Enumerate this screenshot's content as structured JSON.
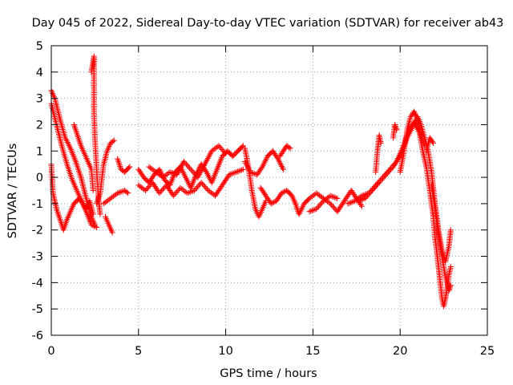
{
  "chart_data": {
    "type": "scatter",
    "title": "Day 045 of 2022, Sidereal Day-to-day VTEC variation (SDTVAR) for receiver ab43",
    "xlabel": "GPS time / hours",
    "ylabel": "SDTVAR / TECUs",
    "xlim": [
      0,
      25
    ],
    "ylim": [
      -6,
      5
    ],
    "xticks": [
      0,
      5,
      10,
      15,
      20,
      25
    ],
    "yticks": [
      -6,
      -5,
      -4,
      -3,
      -2,
      -1,
      0,
      1,
      2,
      3,
      4,
      5
    ],
    "grid": true,
    "legend": "none",
    "marker": "+",
    "series": [
      {
        "name": "SDTVAR",
        "color": "#ff0000",
        "tracks": [
          [
            [
              0.0,
              3.3
            ],
            [
              0.2,
              3.0
            ],
            [
              0.5,
              2.2
            ],
            [
              0.8,
              1.5
            ],
            [
              1.1,
              1.1
            ],
            [
              1.4,
              0.6
            ],
            [
              1.7,
              0.0
            ],
            [
              2.0,
              -0.8
            ],
            [
              2.3,
              -1.5
            ],
            [
              2.5,
              -1.8
            ]
          ],
          [
            [
              0.0,
              2.8
            ],
            [
              0.3,
              2.0
            ],
            [
              0.6,
              1.2
            ],
            [
              0.9,
              0.5
            ],
            [
              1.2,
              -0.1
            ],
            [
              1.6,
              -0.7
            ],
            [
              2.0,
              -1.3
            ],
            [
              2.3,
              -1.8
            ],
            [
              2.6,
              -1.9
            ]
          ],
          [
            [
              0.0,
              0.5
            ],
            [
              0.1,
              -0.6
            ],
            [
              0.3,
              -1.2
            ],
            [
              0.5,
              -1.6
            ],
            [
              0.7,
              -2.0
            ],
            [
              0.9,
              -1.6
            ],
            [
              1.1,
              -1.3
            ],
            [
              1.3,
              -1.0
            ],
            [
              1.6,
              -0.8
            ],
            [
              1.8,
              -1.0
            ],
            [
              2.0,
              -1.2
            ],
            [
              2.2,
              -0.9
            ],
            [
              2.4,
              -1.4
            ]
          ],
          [
            [
              1.3,
              2.0
            ],
            [
              1.5,
              1.6
            ],
            [
              1.7,
              1.2
            ],
            [
              1.9,
              0.9
            ],
            [
              2.1,
              0.6
            ],
            [
              2.3,
              0.3
            ],
            [
              2.4,
              -0.5
            ]
          ],
          [
            [
              2.3,
              4.0
            ],
            [
              2.45,
              4.6
            ],
            [
              2.45,
              2.5
            ],
            [
              2.5,
              1.5
            ],
            [
              2.6,
              0.3
            ],
            [
              2.7,
              -0.8
            ],
            [
              2.8,
              -1.4
            ]
          ],
          [
            [
              2.6,
              -1.0
            ],
            [
              2.8,
              -0.6
            ],
            [
              3.0,
              0.5
            ],
            [
              3.2,
              1.0
            ],
            [
              3.4,
              1.3
            ],
            [
              3.6,
              1.4
            ]
          ],
          [
            [
              3.1,
              -1.5
            ],
            [
              3.3,
              -1.8
            ],
            [
              3.5,
              -2.1
            ]
          ],
          [
            [
              3.0,
              -1.0
            ],
            [
              3.4,
              -0.8
            ],
            [
              3.8,
              -0.6
            ],
            [
              4.2,
              -0.5
            ],
            [
              4.4,
              -0.6
            ]
          ],
          [
            [
              3.8,
              0.7
            ],
            [
              4.0,
              0.3
            ],
            [
              4.2,
              0.2
            ],
            [
              4.5,
              0.4
            ]
          ],
          [
            [
              5.0,
              0.3
            ],
            [
              5.3,
              0.0
            ],
            [
              5.6,
              -0.2
            ],
            [
              5.9,
              0.1
            ],
            [
              6.2,
              0.3
            ],
            [
              6.5,
              -0.1
            ],
            [
              6.8,
              -0.3
            ],
            [
              7.1,
              0.2
            ],
            [
              7.4,
              0.4
            ],
            [
              7.7,
              0.0
            ],
            [
              8.0,
              -0.4
            ],
            [
              8.3,
              0.1
            ],
            [
              8.6,
              0.5
            ],
            [
              8.9,
              0.2
            ],
            [
              9.2,
              -0.2
            ],
            [
              9.5,
              0.3
            ],
            [
              9.8,
              0.8
            ],
            [
              10.1,
              1.0
            ],
            [
              10.4,
              0.8
            ],
            [
              10.7,
              1.0
            ],
            [
              11.0,
              1.2
            ]
          ],
          [
            [
              5.0,
              -0.3
            ],
            [
              5.4,
              -0.5
            ],
            [
              5.8,
              -0.2
            ],
            [
              6.2,
              -0.6
            ],
            [
              6.6,
              -0.3
            ],
            [
              7.0,
              -0.7
            ],
            [
              7.4,
              -0.4
            ],
            [
              7.8,
              -0.6
            ],
            [
              8.2,
              -0.5
            ],
            [
              8.6,
              -0.2
            ],
            [
              9.0,
              -0.5
            ],
            [
              9.4,
              -0.7
            ],
            [
              9.8,
              -0.3
            ],
            [
              10.2,
              0.1
            ],
            [
              10.6,
              0.2
            ],
            [
              11.0,
              0.3
            ]
          ],
          [
            [
              5.6,
              0.4
            ],
            [
              6.0,
              0.2
            ],
            [
              6.4,
              0.0
            ],
            [
              6.8,
              0.2
            ],
            [
              7.2,
              0.1
            ],
            [
              7.6,
              0.6
            ],
            [
              8.0,
              0.3
            ],
            [
              8.4,
              0.0
            ],
            [
              8.8,
              0.5
            ],
            [
              9.2,
              1.0
            ],
            [
              9.6,
              1.2
            ],
            [
              10.0,
              0.9
            ]
          ],
          [
            [
              11.1,
              1.1
            ],
            [
              11.3,
              0.4
            ],
            [
              11.5,
              -0.5
            ],
            [
              11.7,
              -1.2
            ],
            [
              11.9,
              -1.5
            ],
            [
              12.1,
              -1.2
            ],
            [
              12.3,
              -0.9
            ]
          ],
          [
            [
              11.1,
              0.6
            ],
            [
              11.4,
              0.2
            ],
            [
              11.8,
              0.1
            ],
            [
              12.1,
              0.4
            ],
            [
              12.4,
              0.8
            ],
            [
              12.7,
              1.0
            ],
            [
              13.0,
              0.7
            ],
            [
              13.3,
              0.3
            ]
          ],
          [
            [
              12.0,
              -0.4
            ],
            [
              12.3,
              -0.7
            ],
            [
              12.6,
              -1.0
            ],
            [
              12.9,
              -0.9
            ],
            [
              13.2,
              -0.6
            ],
            [
              13.5,
              -0.5
            ],
            [
              13.8,
              -0.7
            ],
            [
              14.0,
              -1.0
            ],
            [
              14.2,
              -1.4
            ],
            [
              14.5,
              -1.0
            ],
            [
              14.8,
              -0.8
            ],
            [
              15.2,
              -0.6
            ],
            [
              15.6,
              -0.8
            ],
            [
              16.0,
              -1.0
            ],
            [
              16.4,
              -1.3
            ],
            [
              16.8,
              -0.9
            ],
            [
              17.2,
              -0.5
            ],
            [
              17.5,
              -0.8
            ],
            [
              17.8,
              -1.1
            ]
          ],
          [
            [
              13.1,
              0.8
            ],
            [
              13.3,
              1.0
            ],
            [
              13.5,
              1.2
            ],
            [
              13.7,
              1.1
            ]
          ],
          [
            [
              14.8,
              -1.3
            ],
            [
              15.2,
              -1.2
            ],
            [
              15.6,
              -0.9
            ],
            [
              16.0,
              -0.7
            ],
            [
              16.4,
              -0.8
            ]
          ],
          [
            [
              17.0,
              -1.0
            ],
            [
              17.4,
              -0.9
            ],
            [
              17.8,
              -0.7
            ],
            [
              18.2,
              -0.6
            ],
            [
              18.6,
              -0.3
            ],
            [
              19.0,
              0.0
            ],
            [
              19.4,
              0.3
            ],
            [
              19.8,
              0.6
            ],
            [
              20.2,
              1.2
            ],
            [
              20.5,
              1.8
            ],
            [
              20.8,
              2.1
            ],
            [
              21.1,
              1.7
            ],
            [
              21.3,
              1.0
            ],
            [
              21.5,
              0.4
            ],
            [
              21.7,
              -0.5
            ],
            [
              21.9,
              -1.5
            ],
            [
              22.0,
              -2.3
            ],
            [
              22.1,
              -2.8
            ],
            [
              22.2,
              -3.4
            ],
            [
              22.3,
              -4.0
            ],
            [
              22.4,
              -4.6
            ],
            [
              22.5,
              -4.9
            ],
            [
              22.6,
              -4.6
            ],
            [
              22.7,
              -4.2
            ],
            [
              22.8,
              -3.7
            ],
            [
              22.9,
              -3.4
            ]
          ],
          [
            [
              17.6,
              -0.9
            ],
            [
              18.0,
              -0.8
            ],
            [
              18.4,
              -0.5
            ],
            [
              18.8,
              -0.2
            ],
            [
              19.2,
              0.1
            ],
            [
              19.6,
              0.4
            ],
            [
              20.0,
              0.8
            ],
            [
              20.4,
              1.5
            ],
            [
              20.7,
              1.9
            ],
            [
              21.0,
              2.3
            ],
            [
              21.2,
              2.0
            ],
            [
              21.4,
              1.5
            ],
            [
              21.6,
              1.0
            ],
            [
              21.8,
              0.2
            ],
            [
              22.0,
              -1.0
            ],
            [
              22.2,
              -2.0
            ],
            [
              22.4,
              -2.8
            ],
            [
              22.6,
              -3.2
            ],
            [
              22.8,
              -2.6
            ],
            [
              22.9,
              -2.0
            ]
          ],
          [
            [
              18.6,
              0.2
            ],
            [
              18.7,
              1.0
            ],
            [
              18.8,
              1.6
            ],
            [
              18.9,
              1.3
            ]
          ],
          [
            [
              19.6,
              1.5
            ],
            [
              19.7,
              2.0
            ],
            [
              19.8,
              1.8
            ]
          ],
          [
            [
              20.0,
              0.2
            ],
            [
              20.2,
              0.9
            ],
            [
              20.4,
              1.8
            ],
            [
              20.6,
              2.3
            ],
            [
              20.8,
              2.5
            ],
            [
              21.0,
              2.2
            ],
            [
              21.2,
              1.6
            ],
            [
              21.4,
              1.2
            ]
          ],
          [
            [
              21.5,
              1.0
            ],
            [
              21.7,
              1.5
            ],
            [
              21.9,
              1.3
            ]
          ],
          [
            [
              21.8,
              -0.3
            ],
            [
              22.0,
              -1.2
            ],
            [
              22.2,
              -2.2
            ],
            [
              22.4,
              -3.0
            ],
            [
              22.6,
              -3.8
            ],
            [
              22.8,
              -4.3
            ],
            [
              22.9,
              -4.1
            ]
          ]
        ]
      }
    ]
  }
}
